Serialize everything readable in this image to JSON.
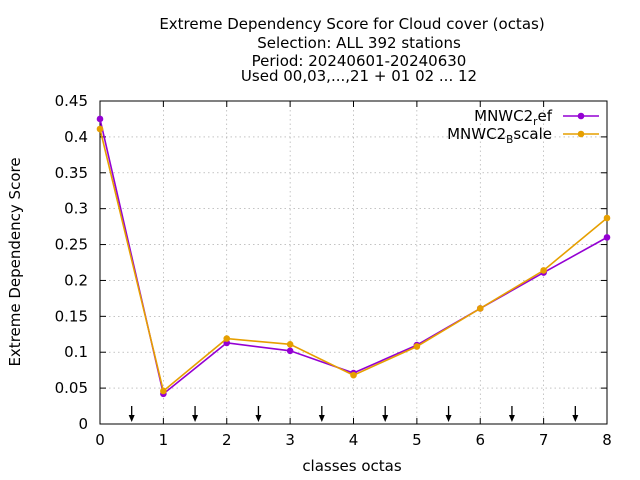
{
  "chart_data": {
    "type": "line",
    "title_lines": [
      "Extreme Dependency Score  for Cloud cover (octas)",
      "Selection: ALL    392 stations",
      "Period: 20240601-20240630",
      "Used 00,03,...,21 + 01 02 ... 12"
    ],
    "xlabel": "classes octas",
    "ylabel": "Extreme Dependency Score",
    "xlim": [
      0,
      8
    ],
    "ylim": [
      0,
      0.45
    ],
    "x_ticks": [
      0,
      1,
      2,
      3,
      4,
      5,
      6,
      7,
      8
    ],
    "x_tick_labels": [
      "0",
      "1",
      "2",
      "3",
      "4",
      "5",
      "6",
      "7",
      "8"
    ],
    "y_ticks": [
      0,
      0.05,
      0.1,
      0.15,
      0.2,
      0.25,
      0.3,
      0.35,
      0.4,
      0.45
    ],
    "y_tick_labels": [
      "0",
      "0.05",
      "0.1",
      "0.15",
      "0.2",
      "0.25",
      "0.3",
      "0.35",
      "0.4",
      "0.45"
    ],
    "grid": true,
    "legend_position": "top-right",
    "x": [
      0,
      1,
      2,
      3,
      4,
      5,
      6,
      7,
      8
    ],
    "series": [
      {
        "name_main": "MNWC2",
        "name_sub": "r",
        "name_tail": "ef",
        "color": "#9400d3",
        "values": [
          0.425,
          0.042,
          0.113,
          0.102,
          0.071,
          0.11,
          0.161,
          0.211,
          0.26
        ]
      },
      {
        "name_main": "MNWC2",
        "name_sub": "B",
        "name_tail": "scale",
        "color": "#e69f00",
        "values": [
          0.411,
          0.046,
          0.119,
          0.111,
          0.068,
          0.108,
          0.161,
          0.214,
          0.287
        ]
      }
    ],
    "arrow_marks_x": [
      0.5,
      1.5,
      2.5,
      3.5,
      4.5,
      5.5,
      6.5,
      7.5
    ]
  }
}
